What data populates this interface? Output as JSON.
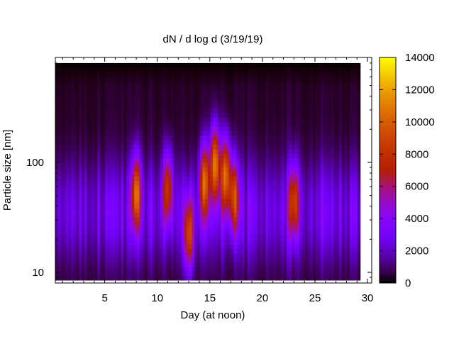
{
  "chart_data": {
    "type": "heatmap",
    "title": "dN / d log d (3/19/19)",
    "xlabel": "Day (at noon)",
    "ylabel": "Particle size [nm]",
    "x_ticks": [
      5,
      10,
      15,
      20,
      25,
      30
    ],
    "y_ticks": [
      10,
      100
    ],
    "xlim": [
      0.3,
      30.4
    ],
    "ylim": [
      8,
      900
    ],
    "y_scale": "log",
    "x_extent": [
      0.3,
      29.3
    ],
    "y_extent": [
      8.5,
      800
    ],
    "colorbar": {
      "ticks": [
        0,
        2000,
        4000,
        6000,
        8000,
        10000,
        12000,
        14000
      ],
      "range": [
        0,
        14000
      ],
      "palette": "gnuplot (black-purple-red-orange-yellow)"
    },
    "bursts": [
      {
        "day": 8.0,
        "size": 55,
        "peak": 8000
      },
      {
        "day": 11.0,
        "size": 60,
        "peak": 6500
      },
      {
        "day": 13.0,
        "size": 22,
        "peak": 7500
      },
      {
        "day": 14.5,
        "size": 70,
        "peak": 8500
      },
      {
        "day": 15.5,
        "size": 100,
        "peak": 10000
      },
      {
        "day": 16.5,
        "size": 80,
        "peak": 9000
      },
      {
        "day": 17.3,
        "size": 50,
        "peak": 7000
      },
      {
        "day": 23.0,
        "size": 45,
        "peak": 6500
      }
    ]
  }
}
